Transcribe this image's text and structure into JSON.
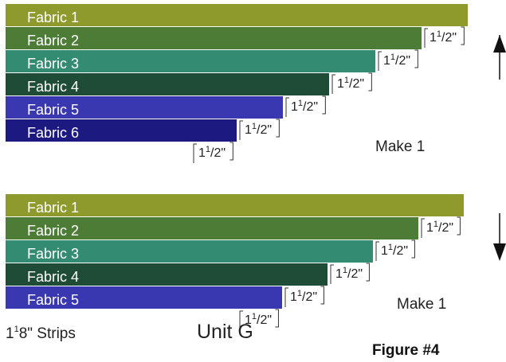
{
  "top_group": {
    "strips": [
      {
        "label": "Fabric 1",
        "color": "#8f9a2c"
      },
      {
        "label": "Fabric 2",
        "color": "#4c7c36"
      },
      {
        "label": "Fabric 3",
        "color": "#338c72"
      },
      {
        "label": "Fabric 4",
        "color": "#1e4c36"
      },
      {
        "label": "Fabric 5",
        "color": "#3a38b0"
      },
      {
        "label": "Fabric 6",
        "color": "#1c1a80"
      }
    ],
    "step_whole": "1",
    "step_num": "1",
    "step_den": "2\"",
    "make_label": "Make 1",
    "arrow": "up-arrow-icon"
  },
  "bottom_group": {
    "strips": [
      {
        "label": "Fabric 1",
        "color": "#8f9a2c"
      },
      {
        "label": "Fabric 2",
        "color": "#4c7c36"
      },
      {
        "label": "Fabric 3",
        "color": "#338c72"
      },
      {
        "label": "Fabric 4",
        "color": "#1e4c36"
      },
      {
        "label": "Fabric 5",
        "color": "#3a38b0"
      }
    ],
    "step_whole": "1",
    "step_num": "1",
    "step_den": "2\"",
    "make_label": "Make 1",
    "arrow": "down-arrow-icon"
  },
  "strip_size": {
    "whole": "1",
    "num": "1",
    "den": "8\"",
    "rest": " Strips"
  },
  "unit_label": "Unit G",
  "figure_label": "Figure #4"
}
